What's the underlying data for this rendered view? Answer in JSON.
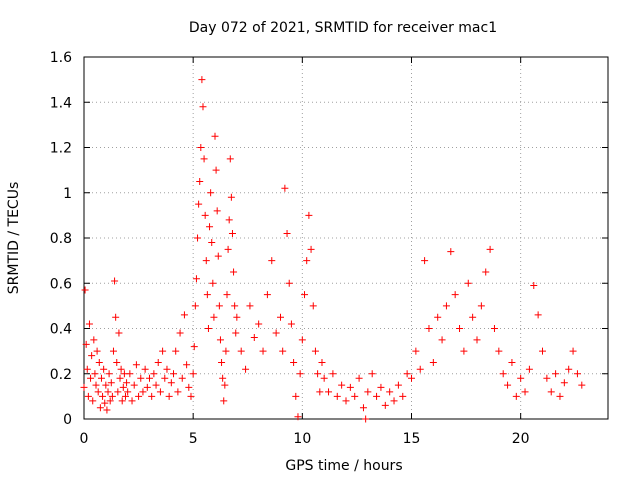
{
  "chart_data": {
    "type": "scatter",
    "title": "Day 072 of 2021, SRMTID for receiver mac1",
    "xlabel": "GPS time / hours",
    "ylabel": "SRMTID / TECUs",
    "xlim": [
      0,
      24
    ],
    "ylim": [
      0,
      1.6
    ],
    "x_ticks": [
      "0",
      "5",
      "10",
      "15",
      "20"
    ],
    "x_tick_values": [
      0,
      5,
      10,
      15,
      20
    ],
    "y_ticks": [
      "0",
      "0.2",
      "0.4",
      "0.6",
      "0.8",
      "1",
      "1.2",
      "1.4",
      "1.6"
    ],
    "y_tick_values": [
      0,
      0.2,
      0.4,
      0.6,
      0.8,
      1.0,
      1.2,
      1.4,
      1.6
    ],
    "grid": true,
    "marker": "plus",
    "series": [
      {
        "name": "SRMTID",
        "color": "#ff0000",
        "points": [
          [
            0.0,
            0.14
          ],
          [
            0.05,
            0.57
          ],
          [
            0.1,
            0.33
          ],
          [
            0.15,
            0.22
          ],
          [
            0.2,
            0.1
          ],
          [
            0.25,
            0.42
          ],
          [
            0.3,
            0.18
          ],
          [
            0.35,
            0.28
          ],
          [
            0.4,
            0.08
          ],
          [
            0.45,
            0.35
          ],
          [
            0.5,
            0.2
          ],
          [
            0.55,
            0.15
          ],
          [
            0.6,
            0.3
          ],
          [
            0.65,
            0.12
          ],
          [
            0.7,
            0.25
          ],
          [
            0.75,
            0.05
          ],
          [
            0.8,
            0.18
          ],
          [
            0.85,
            0.1
          ],
          [
            0.9,
            0.22
          ],
          [
            0.95,
            0.07
          ],
          [
            1.0,
            0.15
          ],
          [
            1.05,
            0.04
          ],
          [
            1.1,
            0.12
          ],
          [
            1.15,
            0.2
          ],
          [
            1.2,
            0.08
          ],
          [
            1.25,
            0.16
          ],
          [
            1.3,
            0.1
          ],
          [
            1.35,
            0.3
          ],
          [
            1.4,
            0.61
          ],
          [
            1.45,
            0.45
          ],
          [
            1.5,
            0.25
          ],
          [
            1.55,
            0.12
          ],
          [
            1.6,
            0.38
          ],
          [
            1.65,
            0.18
          ],
          [
            1.7,
            0.22
          ],
          [
            1.75,
            0.08
          ],
          [
            1.8,
            0.14
          ],
          [
            1.85,
            0.2
          ],
          [
            1.9,
            0.1
          ],
          [
            1.95,
            0.16
          ],
          [
            2.0,
            0.12
          ],
          [
            2.1,
            0.2
          ],
          [
            2.2,
            0.08
          ],
          [
            2.3,
            0.15
          ],
          [
            2.4,
            0.24
          ],
          [
            2.5,
            0.1
          ],
          [
            2.6,
            0.18
          ],
          [
            2.7,
            0.12
          ],
          [
            2.8,
            0.22
          ],
          [
            2.9,
            0.14
          ],
          [
            3.0,
            0.18
          ],
          [
            3.1,
            0.1
          ],
          [
            3.2,
            0.2
          ],
          [
            3.3,
            0.15
          ],
          [
            3.4,
            0.25
          ],
          [
            3.5,
            0.12
          ],
          [
            3.6,
            0.3
          ],
          [
            3.7,
            0.18
          ],
          [
            3.8,
            0.22
          ],
          [
            3.9,
            0.1
          ],
          [
            4.0,
            0.16
          ],
          [
            4.1,
            0.2
          ],
          [
            4.2,
            0.3
          ],
          [
            4.3,
            0.12
          ],
          [
            4.4,
            0.38
          ],
          [
            4.5,
            0.18
          ],
          [
            4.6,
            0.46
          ],
          [
            4.7,
            0.24
          ],
          [
            4.8,
            0.14
          ],
          [
            4.9,
            0.1
          ],
          [
            5.0,
            0.2
          ],
          [
            5.05,
            0.32
          ],
          [
            5.1,
            0.5
          ],
          [
            5.15,
            0.62
          ],
          [
            5.2,
            0.8
          ],
          [
            5.25,
            0.95
          ],
          [
            5.3,
            1.05
          ],
          [
            5.35,
            1.2
          ],
          [
            5.4,
            1.5
          ],
          [
            5.45,
            1.38
          ],
          [
            5.5,
            1.15
          ],
          [
            5.55,
            0.9
          ],
          [
            5.6,
            0.7
          ],
          [
            5.65,
            0.55
          ],
          [
            5.7,
            0.4
          ],
          [
            5.75,
            0.85
          ],
          [
            5.8,
            1.0
          ],
          [
            5.85,
            0.78
          ],
          [
            5.9,
            0.6
          ],
          [
            5.95,
            0.45
          ],
          [
            6.0,
            1.25
          ],
          [
            6.05,
            1.1
          ],
          [
            6.1,
            0.92
          ],
          [
            6.15,
            0.72
          ],
          [
            6.2,
            0.5
          ],
          [
            6.25,
            0.35
          ],
          [
            6.3,
            0.25
          ],
          [
            6.35,
            0.18
          ],
          [
            6.4,
            0.08
          ],
          [
            6.45,
            0.15
          ],
          [
            6.5,
            0.3
          ],
          [
            6.55,
            0.55
          ],
          [
            6.6,
            0.75
          ],
          [
            6.65,
            0.88
          ],
          [
            6.7,
            1.15
          ],
          [
            6.75,
            0.98
          ],
          [
            6.8,
            0.82
          ],
          [
            6.85,
            0.65
          ],
          [
            6.9,
            0.5
          ],
          [
            6.95,
            0.38
          ],
          [
            7.0,
            0.45
          ],
          [
            7.2,
            0.3
          ],
          [
            7.4,
            0.22
          ],
          [
            7.6,
            0.5
          ],
          [
            7.8,
            0.36
          ],
          [
            8.0,
            0.42
          ],
          [
            8.2,
            0.3
          ],
          [
            8.4,
            0.55
          ],
          [
            8.6,
            0.7
          ],
          [
            8.8,
            0.38
          ],
          [
            9.0,
            0.45
          ],
          [
            9.1,
            0.3
          ],
          [
            9.2,
            1.02
          ],
          [
            9.3,
            0.82
          ],
          [
            9.4,
            0.6
          ],
          [
            9.5,
            0.42
          ],
          [
            9.6,
            0.25
          ],
          [
            9.7,
            0.1
          ],
          [
            9.8,
            0.01
          ],
          [
            9.9,
            0.2
          ],
          [
            10.0,
            0.35
          ],
          [
            10.1,
            0.55
          ],
          [
            10.2,
            0.7
          ],
          [
            10.3,
            0.9
          ],
          [
            10.4,
            0.75
          ],
          [
            10.5,
            0.5
          ],
          [
            10.6,
            0.3
          ],
          [
            10.7,
            0.2
          ],
          [
            10.8,
            0.12
          ],
          [
            10.9,
            0.25
          ],
          [
            11.0,
            0.18
          ],
          [
            11.2,
            0.12
          ],
          [
            11.4,
            0.2
          ],
          [
            11.6,
            0.1
          ],
          [
            11.8,
            0.15
          ],
          [
            12.0,
            0.08
          ],
          [
            12.2,
            0.14
          ],
          [
            12.4,
            0.1
          ],
          [
            12.6,
            0.18
          ],
          [
            12.8,
            0.05
          ],
          [
            12.9,
            0.0
          ],
          [
            13.0,
            0.12
          ],
          [
            13.2,
            0.2
          ],
          [
            13.4,
            0.1
          ],
          [
            13.6,
            0.14
          ],
          [
            13.8,
            0.06
          ],
          [
            14.0,
            0.12
          ],
          [
            14.2,
            0.08
          ],
          [
            14.4,
            0.15
          ],
          [
            14.6,
            0.1
          ],
          [
            14.8,
            0.2
          ],
          [
            15.0,
            0.18
          ],
          [
            15.2,
            0.3
          ],
          [
            15.4,
            0.22
          ],
          [
            15.6,
            0.7
          ],
          [
            15.8,
            0.4
          ],
          [
            16.0,
            0.25
          ],
          [
            16.2,
            0.45
          ],
          [
            16.4,
            0.35
          ],
          [
            16.6,
            0.5
          ],
          [
            16.8,
            0.74
          ],
          [
            17.0,
            0.55
          ],
          [
            17.2,
            0.4
          ],
          [
            17.4,
            0.3
          ],
          [
            17.6,
            0.6
          ],
          [
            17.8,
            0.45
          ],
          [
            18.0,
            0.35
          ],
          [
            18.2,
            0.5
          ],
          [
            18.4,
            0.65
          ],
          [
            18.6,
            0.75
          ],
          [
            18.8,
            0.4
          ],
          [
            19.0,
            0.3
          ],
          [
            19.2,
            0.2
          ],
          [
            19.4,
            0.15
          ],
          [
            19.6,
            0.25
          ],
          [
            19.8,
            0.1
          ],
          [
            20.0,
            0.18
          ],
          [
            20.2,
            0.12
          ],
          [
            20.4,
            0.22
          ],
          [
            20.6,
            0.59
          ],
          [
            20.8,
            0.46
          ],
          [
            21.0,
            0.3
          ],
          [
            21.2,
            0.18
          ],
          [
            21.4,
            0.12
          ],
          [
            21.6,
            0.2
          ],
          [
            21.8,
            0.1
          ],
          [
            22.0,
            0.16
          ],
          [
            22.2,
            0.22
          ],
          [
            22.4,
            0.3
          ],
          [
            22.6,
            0.2
          ],
          [
            22.8,
            0.15
          ]
        ]
      }
    ]
  }
}
